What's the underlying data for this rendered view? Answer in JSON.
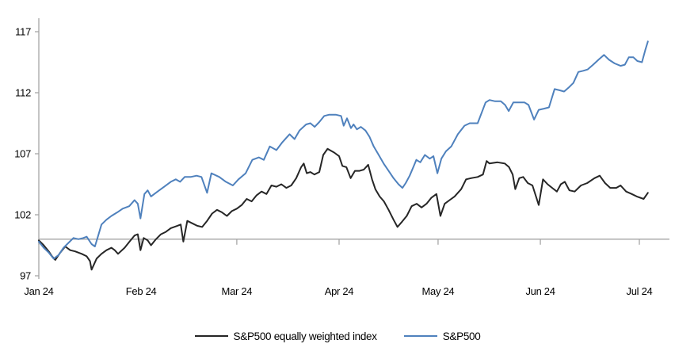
{
  "chart_data": {
    "type": "line",
    "title": "",
    "x_axis": {
      "baseline_value": 100,
      "ticks": [
        {
          "label": "Jan 24",
          "day": 0
        },
        {
          "label": "Feb 24",
          "day": 31
        },
        {
          "label": "Mar 24",
          "day": 60
        },
        {
          "label": "Apr 24",
          "day": 91
        },
        {
          "label": "May 24",
          "day": 121
        },
        {
          "label": "Jun 24",
          "day": 152
        },
        {
          "label": "Jul 24",
          "day": 182
        }
      ]
    },
    "y_axis": {
      "ticks": [
        97,
        102,
        107,
        112,
        117
      ],
      "range": [
        97,
        117
      ]
    },
    "legend_position": "bottom",
    "grid": false,
    "series": [
      {
        "name": "S&P500 equally weighted index",
        "color": "#262626",
        "points": [
          [
            0,
            99.9
          ],
          [
            1.5,
            99.5
          ],
          [
            3,
            99.0
          ],
          [
            4,
            98.6
          ],
          [
            5,
            98.3
          ],
          [
            6.5,
            98.9
          ],
          [
            8,
            99.4
          ],
          [
            9.5,
            99.1
          ],
          [
            11,
            99.0
          ],
          [
            13,
            98.8
          ],
          [
            14.5,
            98.6
          ],
          [
            15.5,
            98.2
          ],
          [
            16,
            97.5
          ],
          [
            17.5,
            98.4
          ],
          [
            19,
            98.8
          ],
          [
            20.5,
            99.1
          ],
          [
            22,
            99.3
          ],
          [
            23,
            99.1
          ],
          [
            24,
            98.8
          ],
          [
            26,
            99.3
          ],
          [
            27.5,
            99.8
          ],
          [
            29,
            100.3
          ],
          [
            30,
            100.4
          ],
          [
            30.8,
            99.1
          ],
          [
            31.8,
            100.1
          ],
          [
            33,
            99.9
          ],
          [
            34,
            99.5
          ],
          [
            35.5,
            100.0
          ],
          [
            37,
            100.4
          ],
          [
            38.5,
            100.6
          ],
          [
            40,
            100.9
          ],
          [
            42,
            101.1
          ],
          [
            43,
            101.2
          ],
          [
            43.8,
            99.8
          ],
          [
            45,
            101.5
          ],
          [
            46.5,
            101.3
          ],
          [
            48,
            101.1
          ],
          [
            49.5,
            101.0
          ],
          [
            51,
            101.5
          ],
          [
            52.5,
            102.1
          ],
          [
            54,
            102.4
          ],
          [
            55.5,
            102.2
          ],
          [
            57,
            101.9
          ],
          [
            58.5,
            102.3
          ],
          [
            60,
            102.5
          ],
          [
            61.5,
            102.8
          ],
          [
            63,
            103.3
          ],
          [
            64.5,
            103.1
          ],
          [
            66,
            103.6
          ],
          [
            67.5,
            103.9
          ],
          [
            69,
            103.7
          ],
          [
            70.5,
            104.4
          ],
          [
            72,
            104.3
          ],
          [
            73.5,
            104.5
          ],
          [
            75,
            104.2
          ],
          [
            76.5,
            104.4
          ],
          [
            78,
            105.0
          ],
          [
            79.5,
            105.9
          ],
          [
            80.3,
            106.2
          ],
          [
            81.2,
            105.4
          ],
          [
            82.3,
            105.5
          ],
          [
            83.5,
            105.3
          ],
          [
            85,
            105.5
          ],
          [
            86.2,
            106.9
          ],
          [
            87.5,
            107.4
          ],
          [
            89.5,
            107.1
          ],
          [
            91,
            106.8
          ],
          [
            92,
            106.0
          ],
          [
            93.2,
            105.9
          ],
          [
            94.5,
            105.0
          ],
          [
            95.8,
            105.6
          ],
          [
            97.2,
            105.6
          ],
          [
            98.5,
            105.7
          ],
          [
            99.8,
            106.1
          ],
          [
            101,
            104.9
          ],
          [
            102,
            104.1
          ],
          [
            103.3,
            103.5
          ],
          [
            104.6,
            103.1
          ],
          [
            106,
            102.4
          ],
          [
            107.5,
            101.6
          ],
          [
            108.7,
            101.0
          ],
          [
            110,
            101.4
          ],
          [
            111.5,
            101.9
          ],
          [
            113,
            102.7
          ],
          [
            114.5,
            102.9
          ],
          [
            116,
            102.6
          ],
          [
            117.5,
            102.9
          ],
          [
            119,
            103.4
          ],
          [
            120.5,
            103.7
          ],
          [
            121.7,
            101.9
          ],
          [
            123,
            102.9
          ],
          [
            124.5,
            103.2
          ],
          [
            126,
            103.5
          ],
          [
            128,
            104.1
          ],
          [
            129.5,
            104.9
          ],
          [
            131,
            105.0
          ],
          [
            133,
            105.1
          ],
          [
            134.6,
            105.3
          ],
          [
            135.7,
            106.4
          ],
          [
            136.6,
            106.2
          ],
          [
            139,
            106.3
          ],
          [
            141.2,
            106.2
          ],
          [
            142.5,
            105.9
          ],
          [
            143.6,
            105.3
          ],
          [
            144.4,
            104.1
          ],
          [
            145.6,
            105.0
          ],
          [
            146.8,
            105.1
          ],
          [
            148.2,
            104.6
          ],
          [
            149.6,
            104.4
          ],
          [
            151.5,
            102.8
          ],
          [
            152.8,
            104.9
          ],
          [
            154.2,
            104.5
          ],
          [
            155.6,
            104.2
          ],
          [
            157,
            103.9
          ],
          [
            158.2,
            104.5
          ],
          [
            159.4,
            104.7
          ],
          [
            160.8,
            104.0
          ],
          [
            162.4,
            103.9
          ],
          [
            164.3,
            104.4
          ],
          [
            166.2,
            104.6
          ],
          [
            168.4,
            105.0
          ],
          [
            170,
            105.2
          ],
          [
            171.6,
            104.6
          ],
          [
            173.2,
            104.2
          ],
          [
            175,
            104.2
          ],
          [
            176.3,
            104.4
          ],
          [
            178,
            103.9
          ],
          [
            179.7,
            103.7
          ],
          [
            181.2,
            103.5
          ],
          [
            183.3,
            103.3
          ],
          [
            184.6,
            103.8
          ]
        ]
      },
      {
        "name": "S&P500",
        "color": "#4F81BD",
        "points": [
          [
            0,
            99.8
          ],
          [
            1.5,
            99.3
          ],
          [
            3,
            98.9
          ],
          [
            4.5,
            98.4
          ],
          [
            6,
            98.7
          ],
          [
            7.5,
            99.3
          ],
          [
            9,
            99.7
          ],
          [
            10.5,
            100.1
          ],
          [
            12,
            100.0
          ],
          [
            13.5,
            100.1
          ],
          [
            14.5,
            100.2
          ],
          [
            16,
            99.6
          ],
          [
            17,
            99.4
          ],
          [
            18,
            100.3
          ],
          [
            19,
            101.2
          ],
          [
            20.5,
            101.6
          ],
          [
            22,
            101.9
          ],
          [
            23.8,
            102.2
          ],
          [
            25.4,
            102.5
          ],
          [
            27.4,
            102.7
          ],
          [
            29,
            103.2
          ],
          [
            30,
            102.9
          ],
          [
            30.8,
            101.7
          ],
          [
            32,
            103.7
          ],
          [
            33,
            104.0
          ],
          [
            34,
            103.5
          ],
          [
            36,
            103.9
          ],
          [
            38,
            104.3
          ],
          [
            40,
            104.7
          ],
          [
            41.5,
            104.9
          ],
          [
            42.8,
            104.7
          ],
          [
            44.2,
            105.1
          ],
          [
            46,
            105.1
          ],
          [
            47.8,
            105.2
          ],
          [
            49.3,
            105.1
          ],
          [
            51,
            103.8
          ],
          [
            52.3,
            105.4
          ],
          [
            54.7,
            105.1
          ],
          [
            56.7,
            104.7
          ],
          [
            58.8,
            104.4
          ],
          [
            60.5,
            104.9
          ],
          [
            62.7,
            105.4
          ],
          [
            64.7,
            106.5
          ],
          [
            66.7,
            106.7
          ],
          [
            68.2,
            106.5
          ],
          [
            70,
            107.6
          ],
          [
            72,
            107.3
          ],
          [
            73.7,
            107.9
          ],
          [
            76,
            108.6
          ],
          [
            77.5,
            108.2
          ],
          [
            79,
            108.9
          ],
          [
            81,
            109.4
          ],
          [
            82.3,
            109.5
          ],
          [
            83.6,
            109.2
          ],
          [
            85,
            109.6
          ],
          [
            86.5,
            110.1
          ],
          [
            88,
            110.2
          ],
          [
            90,
            110.2
          ],
          [
            91.6,
            110.1
          ],
          [
            92.4,
            109.3
          ],
          [
            93.4,
            109.9
          ],
          [
            94.6,
            109.1
          ],
          [
            95.4,
            109.4
          ],
          [
            96.4,
            109.0
          ],
          [
            97.6,
            109.2
          ],
          [
            99,
            108.9
          ],
          [
            100.2,
            108.4
          ],
          [
            101.5,
            107.6
          ],
          [
            103,
            106.9
          ],
          [
            104.5,
            106.2
          ],
          [
            106,
            105.6
          ],
          [
            107.5,
            105.0
          ],
          [
            109,
            104.5
          ],
          [
            110.2,
            104.2
          ],
          [
            111.2,
            104.6
          ],
          [
            112.4,
            105.2
          ],
          [
            113.5,
            105.9
          ],
          [
            114.4,
            106.5
          ],
          [
            115.6,
            106.3
          ],
          [
            117,
            106.9
          ],
          [
            118.5,
            106.6
          ],
          [
            119.6,
            106.8
          ],
          [
            120.8,
            105.4
          ],
          [
            122,
            106.6
          ],
          [
            123.4,
            107.2
          ],
          [
            125,
            107.6
          ],
          [
            127,
            108.6
          ],
          [
            129,
            109.3
          ],
          [
            130.6,
            109.5
          ],
          [
            133,
            109.5
          ],
          [
            135.4,
            111.2
          ],
          [
            136.6,
            111.4
          ],
          [
            138.3,
            111.3
          ],
          [
            140,
            111.3
          ],
          [
            141.3,
            111.0
          ],
          [
            142.4,
            110.5
          ],
          [
            143.8,
            111.2
          ],
          [
            145.6,
            111.2
          ],
          [
            147.2,
            111.2
          ],
          [
            148.4,
            111.0
          ],
          [
            150.1,
            109.8
          ],
          [
            151.5,
            110.6
          ],
          [
            153.2,
            110.7
          ],
          [
            154.6,
            110.8
          ],
          [
            156.3,
            112.3
          ],
          [
            157.8,
            112.2
          ],
          [
            159.2,
            112.1
          ],
          [
            160.5,
            112.4
          ],
          [
            162,
            112.8
          ],
          [
            163.5,
            113.7
          ],
          [
            165,
            113.8
          ],
          [
            166.3,
            113.9
          ],
          [
            168,
            114.3
          ],
          [
            169.6,
            114.7
          ],
          [
            171.3,
            115.1
          ],
          [
            172.8,
            114.7
          ],
          [
            174.5,
            114.4
          ],
          [
            176.3,
            114.2
          ],
          [
            177.6,
            114.3
          ],
          [
            178.8,
            114.9
          ],
          [
            180.2,
            114.9
          ],
          [
            181.4,
            114.6
          ],
          [
            182.8,
            114.5
          ],
          [
            183.8,
            115.5
          ],
          [
            184.6,
            116.2
          ]
        ]
      }
    ]
  },
  "colors": {
    "axis": "#A6A6A6",
    "text": "#000000",
    "background": "#FFFFFF"
  }
}
